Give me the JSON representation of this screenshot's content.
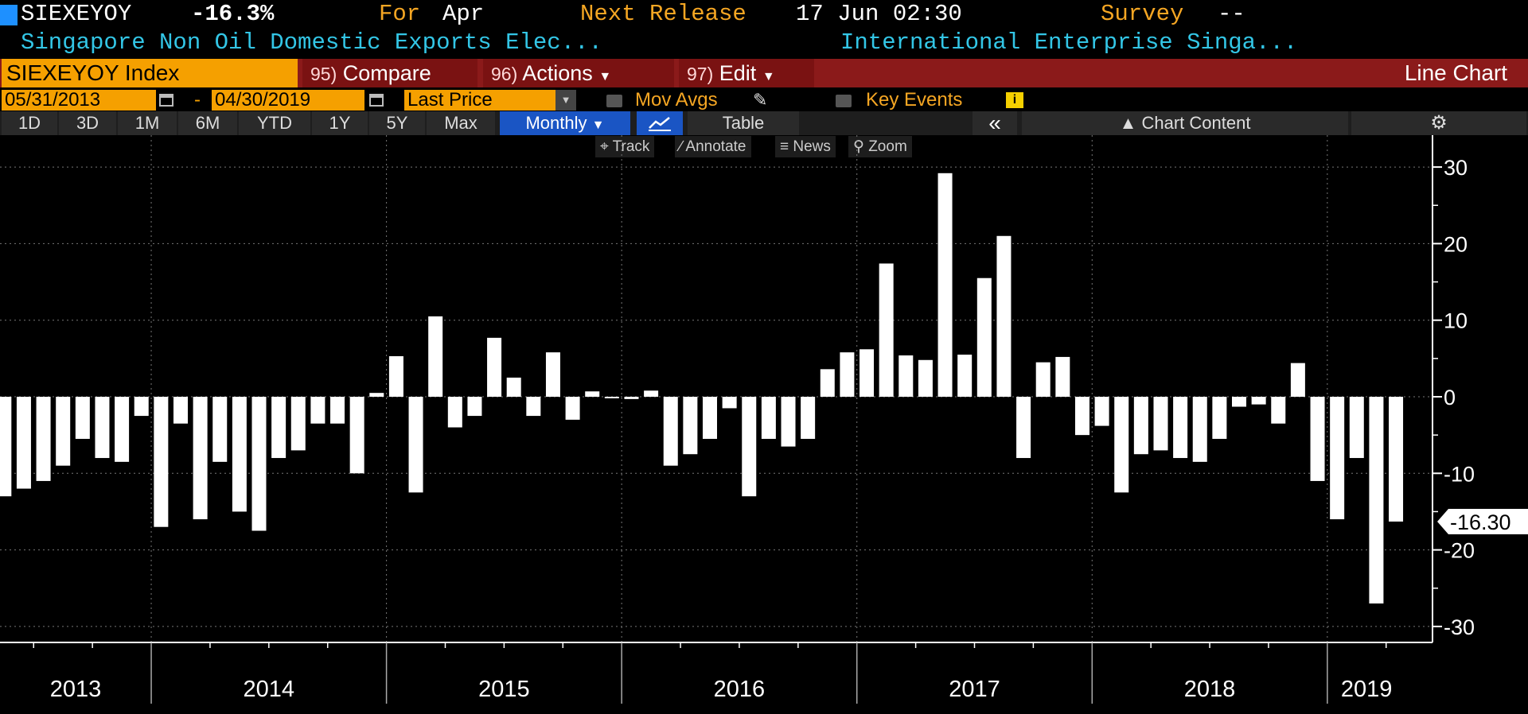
{
  "header": {
    "ticker": "SIEXEYOY",
    "value": "-16.3%",
    "for_label": "For",
    "for_value": "Apr",
    "next_release_label": "Next Release",
    "next_release_value": "17 Jun 02:30",
    "survey_label": "Survey",
    "survey_value": "--",
    "description": "Singapore Non Oil Domestic Exports Elec...",
    "source": "International Enterprise Singa..."
  },
  "command_bar": {
    "security": "SIEXEYOY Index",
    "compare_num": "95)",
    "compare_label": "Compare",
    "actions_num": "96)",
    "actions_label": "Actions",
    "edit_num": "97)",
    "edit_label": "Edit",
    "chart_type": "Line Chart"
  },
  "date_bar": {
    "start_date": "05/31/2013",
    "separator": "-",
    "end_date": "04/30/2019",
    "price_field": "Last Price",
    "mov_avgs": "Mov Avgs",
    "key_events": "Key Events"
  },
  "period_bar": {
    "periods": [
      "1D",
      "3D",
      "1M",
      "6M",
      "YTD",
      "1Y",
      "5Y",
      "Max"
    ],
    "frequency": "Monthly",
    "table": "Table",
    "chart_content": "Chart Content"
  },
  "toolbar": {
    "track": "Track",
    "annotate": "Annotate",
    "news": "News",
    "zoom": "Zoom"
  },
  "colors": {
    "background": "#000000",
    "bars": "#ffffff",
    "header_cyan": "#33c6e6",
    "amber": "#f5a623",
    "command_bar": "#8b1a1a",
    "selected_blue": "#1a55c4"
  },
  "chart_data": {
    "type": "bar",
    "frequency": "monthly",
    "start": "2013-05",
    "end": "2019-04",
    "values": [
      -13,
      -12,
      -11,
      -9,
      -5.5,
      -8,
      -8.5,
      -2.5,
      -17,
      -3.5,
      -16,
      -8.5,
      -15,
      -17.5,
      -8,
      -7,
      -3.5,
      -3.5,
      -10,
      0.5,
      5.3,
      -12.5,
      10.5,
      -4,
      -2.5,
      7.7,
      2.5,
      -2.5,
      5.8,
      -3,
      0.7,
      -0.2,
      -0.3,
      0.8,
      -9,
      -7.5,
      -5.5,
      -1.5,
      -13,
      -5.5,
      -6.5,
      -5.5,
      3.6,
      5.8,
      6.2,
      17.4,
      5.4,
      4.8,
      29.2,
      5.5,
      15.5,
      21,
      -8,
      4.5,
      5.2,
      -5,
      -3.8,
      -12.5,
      -7.5,
      -7,
      -8,
      -8.5,
      -5.5,
      -1.3,
      -1,
      -3.5,
      4.4,
      -11,
      -16,
      -8,
      -27,
      -16.3
    ],
    "y_ticks": [
      30,
      20,
      10,
      0,
      -10,
      -20,
      -30
    ],
    "x_labels": [
      "2013",
      "2014",
      "2015",
      "2016",
      "2017",
      "2018",
      "2019"
    ],
    "ylim": [
      -33,
      33
    ],
    "last_value_label": "-16.30",
    "grid": true
  }
}
